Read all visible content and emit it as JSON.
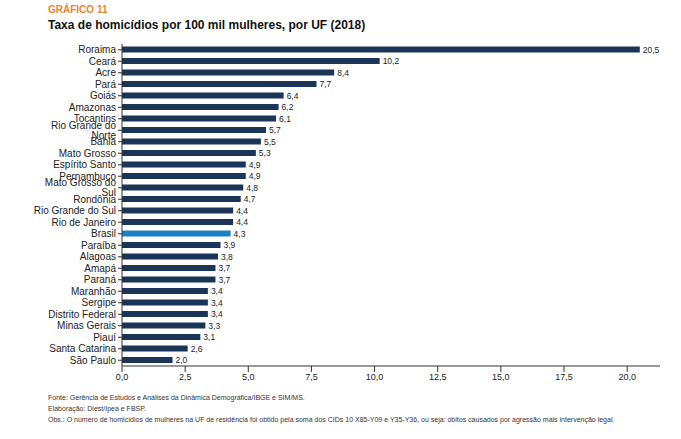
{
  "chart_data": {
    "type": "bar",
    "orientation": "horizontal",
    "subtitle": "GRÁFICO 11",
    "title": "Taxa de homicídios por 100 mil mulheres, por UF (2018)",
    "categories": [
      "Roraima",
      "Ceará",
      "Acre",
      "Pará",
      "Goiás",
      "Amazonas",
      "Tocantins",
      "Rio Grande do Norte",
      "Bahia",
      "Mato Grosso",
      "Espírito Santo",
      "Pernambuco",
      "Mato Grosso do Sul",
      "Rondônia",
      "Rio Grande do Sul",
      "Rio de Janeiro",
      "Brasil",
      "Paraíba",
      "Alagoas",
      "Amapá",
      "Paraná",
      "Maranhão",
      "Sergipe",
      "Distrito Federal",
      "Minas Gerais",
      "Piauí",
      "Santa Catarina",
      "São Paulo"
    ],
    "values": [
      20.5,
      10.2,
      8.4,
      7.7,
      6.4,
      6.2,
      6.1,
      5.7,
      5.5,
      5.3,
      4.9,
      4.9,
      4.8,
      4.7,
      4.4,
      4.4,
      4.3,
      3.9,
      3.8,
      3.7,
      3.7,
      3.4,
      3.4,
      3.4,
      3.3,
      3.1,
      2.6,
      2.0
    ],
    "value_labels": [
      "20,5",
      "10,2",
      "8,4",
      "7,7",
      "6,4",
      "6,2",
      "6,1",
      "5,7",
      "5,5",
      "5,3",
      "4,9",
      "4,9",
      "4,8",
      "4,7",
      "4,4",
      "4,4",
      "4,3",
      "3,9",
      "3,8",
      "3,7",
      "3,7",
      "3,4",
      "3,4",
      "3,4",
      "3,3",
      "3,1",
      "2,6",
      "2,0"
    ],
    "colors": [
      "#1b3558",
      "#1b3558",
      "#1b3558",
      "#1b3558",
      "#1b3558",
      "#1b3558",
      "#1b3558",
      "#1b3558",
      "#1b3558",
      "#1b3558",
      "#1b3558",
      "#1b3558",
      "#1b3558",
      "#1b3558",
      "#1b3558",
      "#1b3558",
      "#1c80c4",
      "#1b3558",
      "#1b3558",
      "#1b3558",
      "#1b3558",
      "#1b3558",
      "#1b3558",
      "#1b3558",
      "#1b3558",
      "#1b3558",
      "#1b3558",
      "#1b3558"
    ],
    "xlim": [
      0,
      21.3
    ],
    "xticks": [
      {
        "value": 0,
        "label": "0,0"
      },
      {
        "value": 2.5,
        "label": "2,5"
      },
      {
        "value": 5,
        "label": "5,0"
      },
      {
        "value": 7.5,
        "label": "7,5"
      },
      {
        "value": 10,
        "label": "10,0"
      },
      {
        "value": 12.5,
        "label": "12,5"
      },
      {
        "value": 15,
        "label": "15,0"
      },
      {
        "value": 17.5,
        "label": "17,5"
      },
      {
        "value": 20,
        "label": "20,0"
      }
    ],
    "grid": false,
    "data_labels": true,
    "annotations": [
      "Fonte: Gerência de Estudos e Análises da Dinâmica Demográfica/IBGE e SIM/MS.",
      "Elaboração: Diest/Ipea e FBSP.",
      "Obs.: O número de homicídios de mulheres na UF de residência foi obtido pela soma dos CIDs 10 X85-Y09 e Y35-Y36, ou seja: óbitos causados por agressão mais intervenção legal."
    ]
  }
}
